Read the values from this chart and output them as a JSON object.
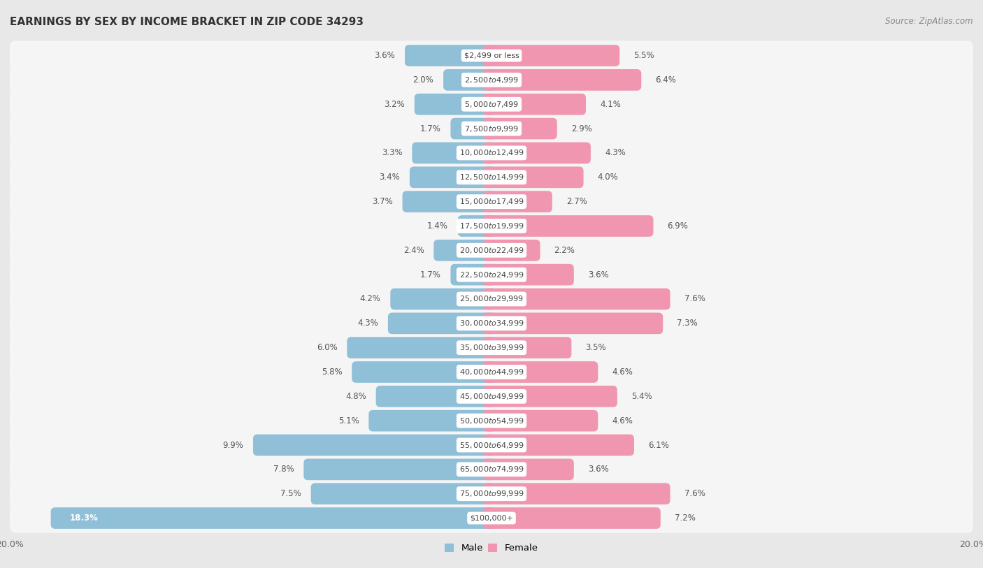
{
  "title": "EARNINGS BY SEX BY INCOME BRACKET IN ZIP CODE 34293",
  "source": "Source: ZipAtlas.com",
  "categories": [
    "$2,499 or less",
    "$2,500 to $4,999",
    "$5,000 to $7,499",
    "$7,500 to $9,999",
    "$10,000 to $12,499",
    "$12,500 to $14,999",
    "$15,000 to $17,499",
    "$17,500 to $19,999",
    "$20,000 to $22,499",
    "$22,500 to $24,999",
    "$25,000 to $29,999",
    "$30,000 to $34,999",
    "$35,000 to $39,999",
    "$40,000 to $44,999",
    "$45,000 to $49,999",
    "$50,000 to $54,999",
    "$55,000 to $64,999",
    "$65,000 to $74,999",
    "$75,000 to $99,999",
    "$100,000+"
  ],
  "male_values": [
    3.6,
    2.0,
    3.2,
    1.7,
    3.3,
    3.4,
    3.7,
    1.4,
    2.4,
    1.7,
    4.2,
    4.3,
    6.0,
    5.8,
    4.8,
    5.1,
    9.9,
    7.8,
    7.5,
    18.3
  ],
  "female_values": [
    5.5,
    6.4,
    4.1,
    2.9,
    4.3,
    4.0,
    2.7,
    6.9,
    2.2,
    3.6,
    7.6,
    7.3,
    3.5,
    4.6,
    5.4,
    4.6,
    6.1,
    3.6,
    7.6,
    7.2
  ],
  "male_color": "#90bfd8",
  "female_color": "#f096b0",
  "male_label": "Male",
  "female_label": "Female",
  "xlim": 20.0,
  "page_bg_color": "#e8e8e8",
  "row_bg_color": "#dcdcdc",
  "bar_bg_color": "#f5f5f5",
  "title_fontsize": 11,
  "label_fontsize": 8.5,
  "cat_fontsize": 8.0,
  "axis_fontsize": 9,
  "source_fontsize": 8.5
}
